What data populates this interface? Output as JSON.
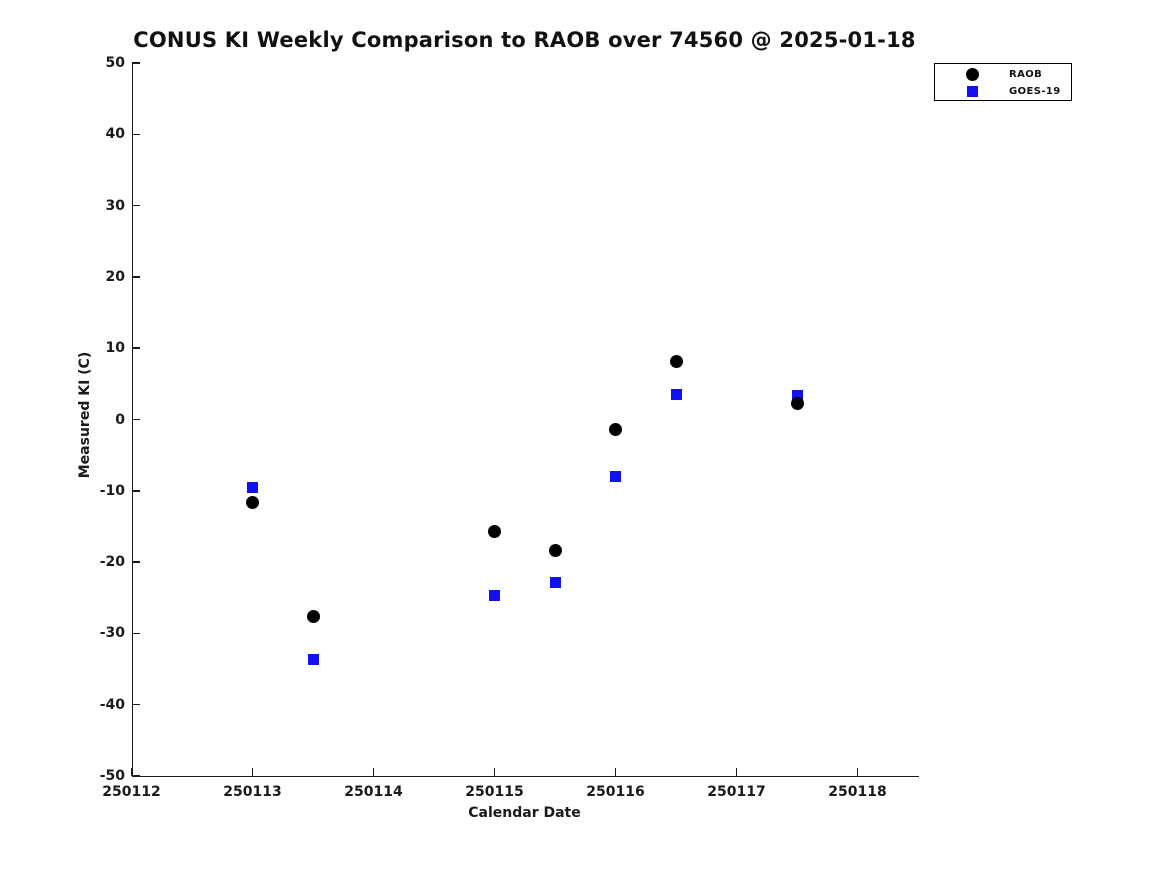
{
  "chart_data": {
    "type": "scatter",
    "title": "CONUS KI Weekly Comparison to RAOB over 74560 @ 2025-01-18",
    "xlabel": "Calendar Date",
    "ylabel": "Measured KI (C)",
    "xlim": [
      250112,
      250118.5
    ],
    "ylim": [
      -50,
      50
    ],
    "xticks": [
      250112,
      250113,
      250114,
      250115,
      250116,
      250117,
      250118
    ],
    "yticks": [
      50,
      40,
      30,
      20,
      10,
      0,
      -10,
      -20,
      -30,
      -40,
      -50
    ],
    "grid": false,
    "legend_position": "top-right-outside-plot",
    "background_color": "#ffffff",
    "axis_color": "#1a1a1a",
    "series": [
      {
        "name": "RAOB",
        "marker": "circle",
        "color": "#000000",
        "points": [
          [
            250113.0,
            -11.6
          ],
          [
            250113.5,
            -27.6
          ],
          [
            250115.0,
            -15.7
          ],
          [
            250115.5,
            -18.4
          ],
          [
            250116.0,
            -1.4
          ],
          [
            250116.5,
            8.2
          ],
          [
            250117.5,
            2.2
          ]
        ]
      },
      {
        "name": "GOES-19",
        "marker": "square",
        "color": "#1010f0",
        "points": [
          [
            250113.0,
            -9.5
          ],
          [
            250113.5,
            -33.6
          ],
          [
            250115.0,
            -24.7
          ],
          [
            250115.5,
            -22.8
          ],
          [
            250116.0,
            -8.0
          ],
          [
            250116.5,
            3.5
          ],
          [
            250117.5,
            3.4
          ]
        ]
      }
    ]
  }
}
